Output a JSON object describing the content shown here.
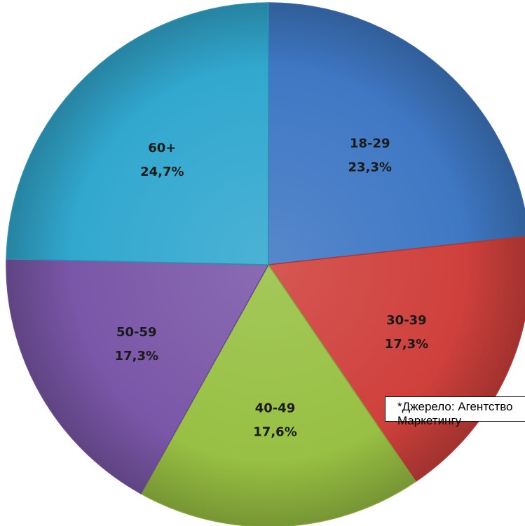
{
  "chart_data": {
    "type": "pie",
    "categories": [
      "18-29",
      "30-39",
      "40-49",
      "50-59",
      "60+"
    ],
    "values": [
      23.3,
      17.3,
      17.6,
      17.3,
      24.7
    ],
    "value_labels": [
      "23,3%",
      "17,3%",
      "17,6%",
      "17,3%",
      "24,7%"
    ],
    "colors": [
      "#3f78c4",
      "#cf403c",
      "#98c043",
      "#7a57a8",
      "#32a8cf"
    ],
    "start_angle_deg": 0,
    "direction": "clockwise",
    "legend": "none"
  },
  "source_note": "*Джерело: Агентство Маркетингу"
}
